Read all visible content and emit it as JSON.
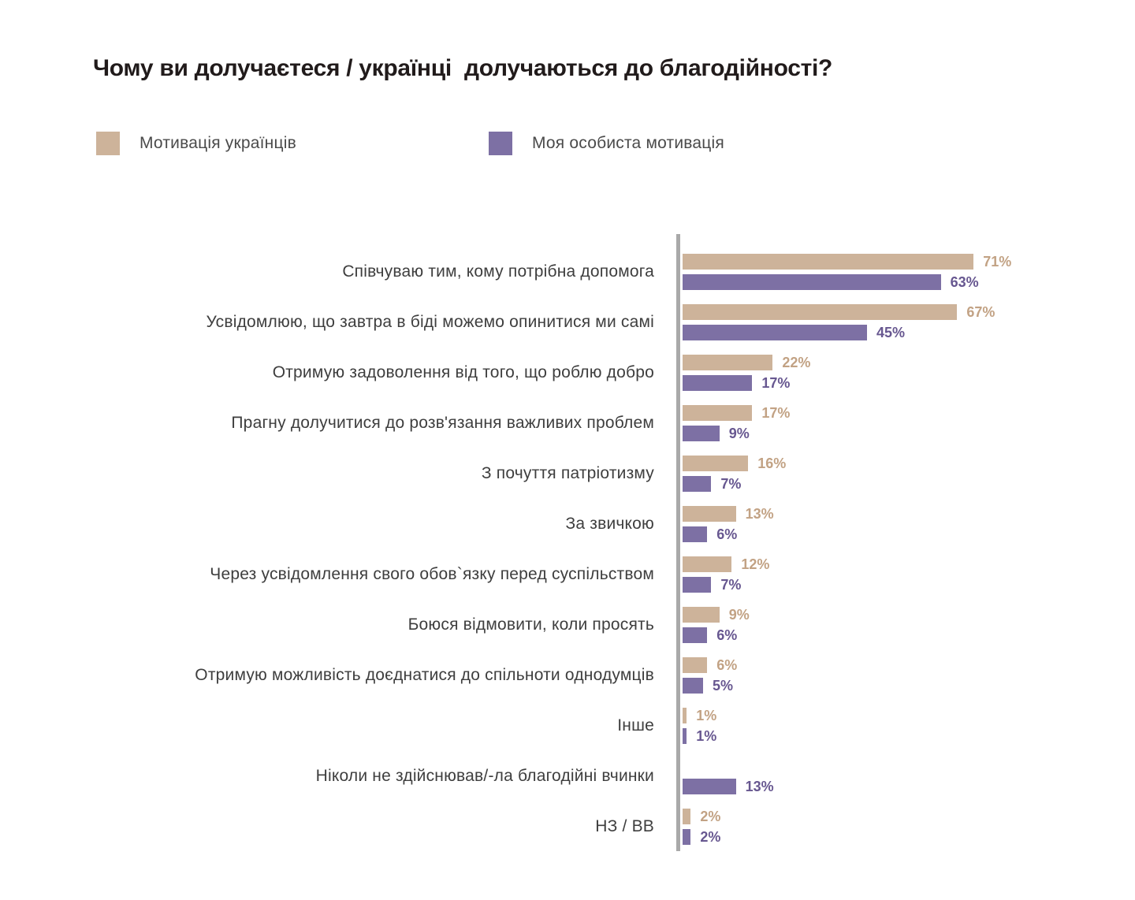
{
  "title": "Чому ви долучаєтеся / українці  долучаються до благодійності?",
  "legend": {
    "items": [
      {
        "label": "Мотивація українців",
        "color": "#cdb39a"
      },
      {
        "label": "Моя особиста мотивація",
        "color": "#7d70a4"
      }
    ]
  },
  "chart_data": {
    "type": "bar",
    "orientation": "horizontal",
    "title": "Чому ви долучаєтеся / українці  долучаються до благодійності?",
    "unit": "%",
    "xlim": [
      0,
      75
    ],
    "grid": false,
    "legend_position": "top",
    "axis_color": "#a9a9a9",
    "categories": [
      "Співчуваю тим, кому потрібна допомога",
      "Усвідомлюю, що завтра в біді можемо опинитися ми самі",
      "Отримую задоволення від того, що роблю добро",
      "Прагну долучитися до розв'язання важливих проблем",
      "З почуття патріотизму",
      "За звичкою",
      "Через усвідомлення свого обов`язку перед суспільством",
      "Боюся відмовити, коли просять",
      "Отримую можливість доєднатися до спільноти однодумців",
      "Інше",
      "Ніколи не здійснював/-ла благодійні вчинки",
      "НЗ / ВВ"
    ],
    "series": [
      {
        "name": "Мотивація українців",
        "color": "#cdb39a",
        "label_color": "#c2a284",
        "values": [
          71,
          67,
          22,
          17,
          16,
          13,
          12,
          9,
          6,
          1,
          null,
          2
        ]
      },
      {
        "name": "Моя особиста мотивація",
        "color": "#7d70a4",
        "label_color": "#675790",
        "values": [
          63,
          45,
          17,
          9,
          7,
          6,
          7,
          6,
          5,
          1,
          13,
          2
        ]
      }
    ]
  }
}
